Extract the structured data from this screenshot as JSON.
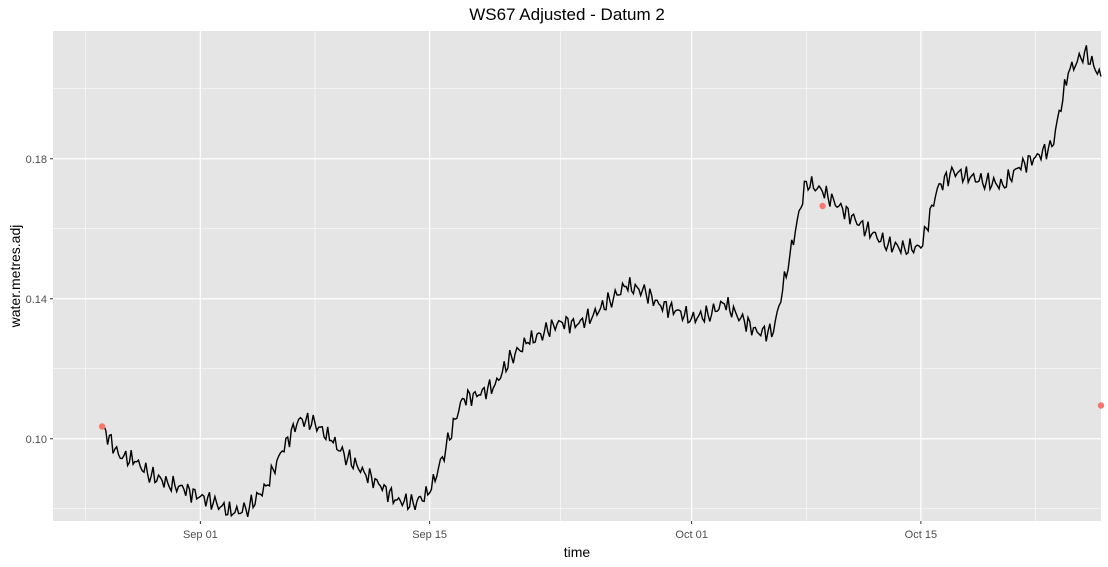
{
  "chart_data": {
    "type": "line",
    "title": "WS67 Adjusted - Datum 2",
    "xlabel": "time",
    "ylabel": "water.metres.adj",
    "x_ticks": [
      "Sep 01",
      "Sep 15",
      "Oct 01",
      "Oct 15"
    ],
    "y_ticks": [
      "0.10",
      "0.14",
      "0.18"
    ],
    "xlim": [
      "2023-08-23",
      "2023-10-26"
    ],
    "ylim": [
      0.0765,
      0.2165
    ],
    "colors": {
      "line": "#000000",
      "points": "#F8766D",
      "panel": "#E5E5E5",
      "grid": "#FFFFFF"
    },
    "grid": true,
    "series": [
      {
        "type": "line",
        "points": [
          [
            "2023-08-26",
            0.1035
          ],
          [
            "2023-08-27",
            0.0955
          ],
          [
            "2023-08-28",
            0.0935
          ],
          [
            "2023-08-29",
            0.0895
          ],
          [
            "2023-08-30",
            0.0875
          ],
          [
            "2023-08-31",
            0.0855
          ],
          [
            "2023-09-01",
            0.0835
          ],
          [
            "2023-09-02",
            0.0815
          ],
          [
            "2023-09-03",
            0.0785
          ],
          [
            "2023-09-04",
            0.0805
          ],
          [
            "2023-09-05",
            0.0865
          ],
          [
            "2023-09-06",
            0.0965
          ],
          [
            "2023-09-07",
            0.1055
          ],
          [
            "2023-09-08",
            0.1045
          ],
          [
            "2023-09-09",
            0.0995
          ],
          [
            "2023-09-10",
            0.0945
          ],
          [
            "2023-09-11",
            0.0905
          ],
          [
            "2023-09-12",
            0.0865
          ],
          [
            "2023-09-13",
            0.0825
          ],
          [
            "2023-09-14",
            0.0815
          ],
          [
            "2023-09-15",
            0.0845
          ],
          [
            "2023-09-16",
            0.0975
          ],
          [
            "2023-09-17",
            0.1115
          ],
          [
            "2023-09-18",
            0.1125
          ],
          [
            "2023-09-19",
            0.1155
          ],
          [
            "2023-09-20",
            0.1235
          ],
          [
            "2023-09-21",
            0.1275
          ],
          [
            "2023-09-22",
            0.1305
          ],
          [
            "2023-09-23",
            0.1335
          ],
          [
            "2023-09-24",
            0.1325
          ],
          [
            "2023-09-25",
            0.1355
          ],
          [
            "2023-09-26",
            0.1395
          ],
          [
            "2023-09-27",
            0.1435
          ],
          [
            "2023-09-28",
            0.1425
          ],
          [
            "2023-09-29",
            0.1385
          ],
          [
            "2023-09-30",
            0.1365
          ],
          [
            "2023-10-01",
            0.1345
          ],
          [
            "2023-10-02",
            0.1355
          ],
          [
            "2023-10-03",
            0.1385
          ],
          [
            "2023-10-04",
            0.1345
          ],
          [
            "2023-10-05",
            0.1305
          ],
          [
            "2023-10-06",
            0.1305
          ],
          [
            "2023-10-07",
            0.1525
          ],
          [
            "2023-10-08",
            0.1735
          ],
          [
            "2023-10-09",
            0.1705
          ],
          [
            "2023-10-10",
            0.1665
          ],
          [
            "2023-10-11",
            0.1625
          ],
          [
            "2023-10-12",
            0.1585
          ],
          [
            "2023-10-13",
            0.1555
          ],
          [
            "2023-10-14",
            0.1545
          ],
          [
            "2023-10-15",
            0.1545
          ],
          [
            "2023-10-16",
            0.1715
          ],
          [
            "2023-10-17",
            0.1765
          ],
          [
            "2023-10-18",
            0.1745
          ],
          [
            "2023-10-19",
            0.1735
          ],
          [
            "2023-10-20",
            0.1725
          ],
          [
            "2023-10-21",
            0.1775
          ],
          [
            "2023-10-22",
            0.1805
          ],
          [
            "2023-10-23",
            0.1835
          ],
          [
            "2023-10-24",
            0.2045
          ],
          [
            "2023-10-25",
            0.2105
          ],
          [
            "2023-10-26",
            0.2035
          ]
        ]
      },
      {
        "type": "scatter",
        "points": [
          [
            "2023-08-26",
            0.1035
          ],
          [
            "2023-10-09",
            0.1665
          ],
          [
            "2023-10-26",
            0.1095
          ]
        ]
      }
    ]
  }
}
